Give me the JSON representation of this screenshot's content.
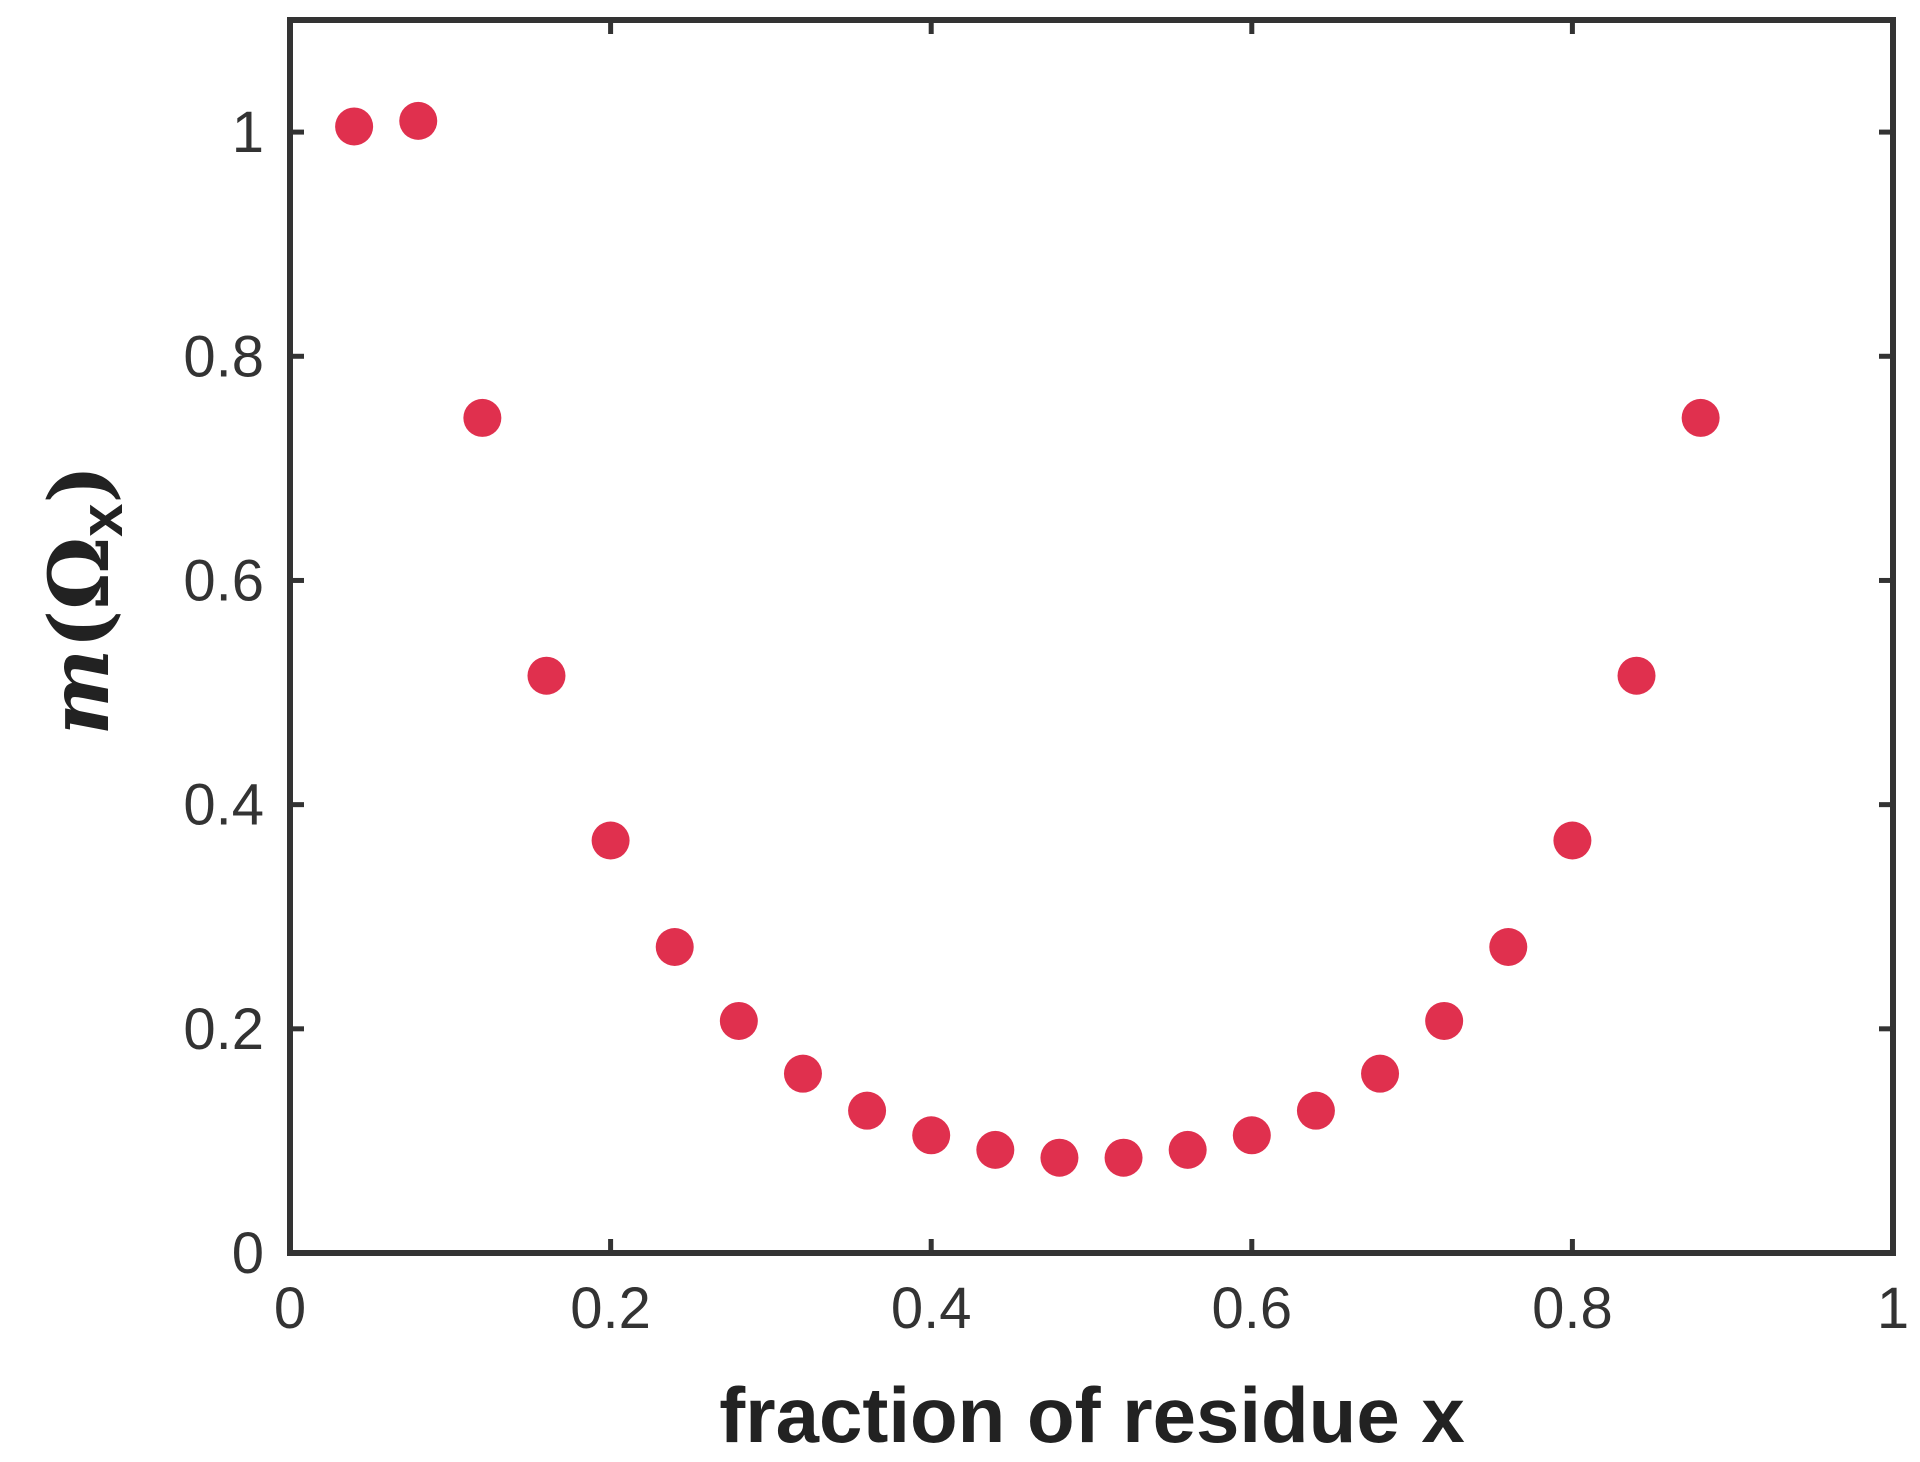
{
  "chart_data": {
    "type": "scatter",
    "title": "",
    "xlabel": "fraction of residue x",
    "ylabel": {
      "italic": "m",
      "open": "(",
      "symbol": "Ω",
      "subscript": "x",
      "close": ")"
    },
    "xlim": [
      0,
      1
    ],
    "ylim": [
      0,
      1.1
    ],
    "x_ticks": [
      0,
      0.2,
      0.4,
      0.6,
      0.8,
      1
    ],
    "y_ticks": [
      0,
      0.2,
      0.4,
      0.6,
      0.8,
      1
    ],
    "x_tick_labels": [
      "0",
      "0.2",
      "0.4",
      "0.6",
      "0.8",
      "1"
    ],
    "y_tick_labels": [
      "0",
      "0.2",
      "0.4",
      "0.6",
      "0.8",
      "1"
    ],
    "grid": false,
    "marker_color": "#e0304e",
    "series": [
      {
        "x": [
          0.04,
          0.08,
          0.12,
          0.16,
          0.2,
          0.24,
          0.28,
          0.32,
          0.36,
          0.4,
          0.44,
          0.48,
          0.52,
          0.56,
          0.6,
          0.64,
          0.68,
          0.72,
          0.76,
          0.8,
          0.84,
          0.88
        ],
        "y": [
          1.005,
          1.01,
          0.745,
          0.515,
          0.368,
          0.273,
          0.207,
          0.16,
          0.127,
          0.105,
          0.092,
          0.085,
          0.085,
          0.092,
          0.105,
          0.127,
          0.16,
          0.207,
          0.273,
          0.368,
          0.515,
          0.745
        ]
      }
    ]
  }
}
